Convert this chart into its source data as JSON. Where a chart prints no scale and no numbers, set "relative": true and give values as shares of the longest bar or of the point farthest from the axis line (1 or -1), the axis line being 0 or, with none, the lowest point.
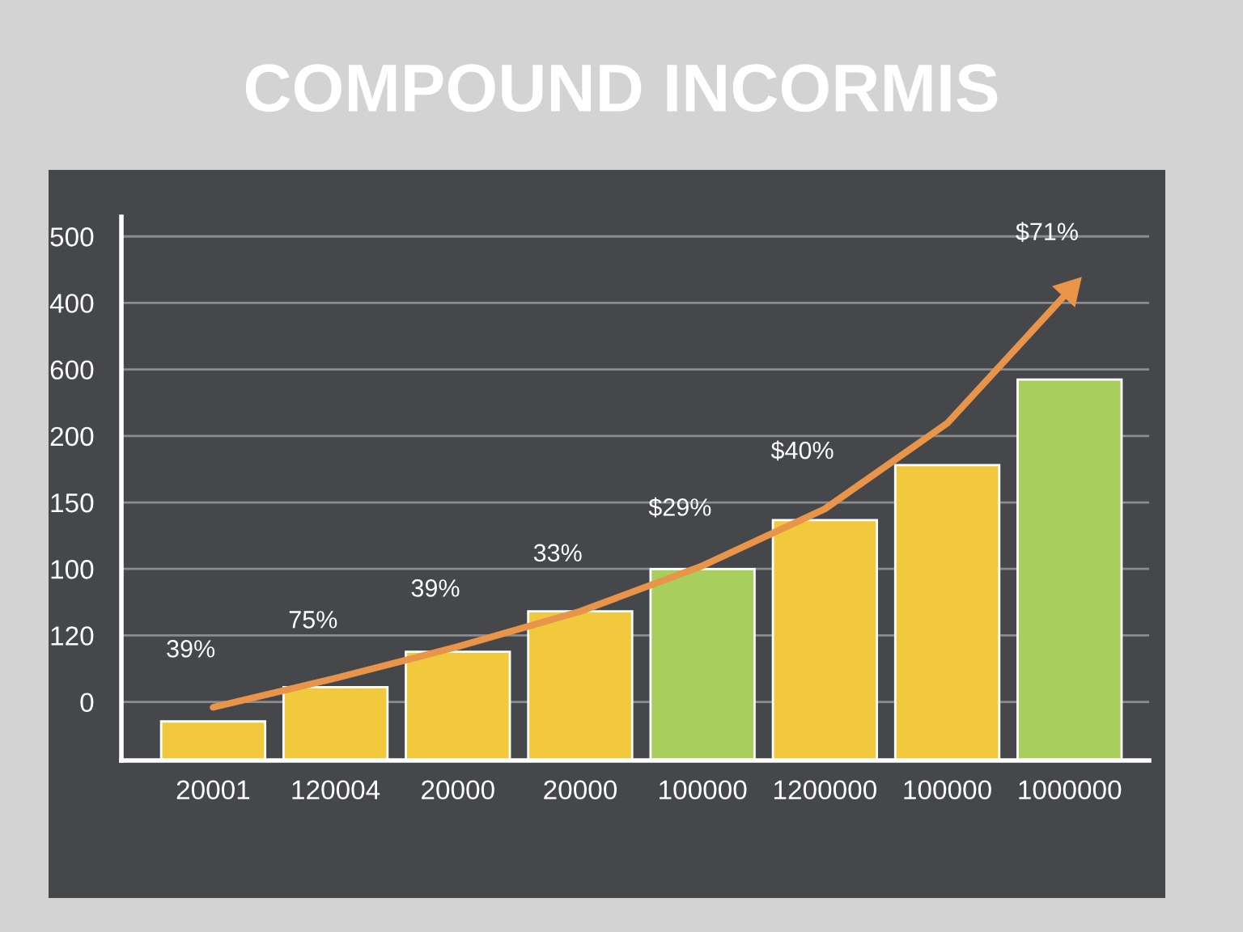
{
  "chart_data": {
    "type": "bar",
    "title": "COMPOUND INCORMIS",
    "categories": [
      "20001",
      "120004",
      "20000",
      "20000",
      "100000",
      "1200000",
      "100000",
      "1000000"
    ],
    "relative": true,
    "series": [
      {
        "colors": [
          "#f2c83c",
          "#f2c83c",
          "#f2c83c",
          "#f2c83c",
          "#a8cf5c",
          "#f2c83c",
          "#f2c83c",
          "#a8cf5c"
        ],
        "values": [
          0.083,
          0.156,
          0.231,
          0.317,
          0.407,
          0.511,
          0.628,
          0.81
        ]
      },
      {
        "type": "line",
        "color": "#e8954a",
        "values": [
          0.113,
          0.175,
          0.242,
          0.317,
          0.414,
          0.535,
          0.717,
          1
        ]
      }
    ],
    "annotations": [
      "0",
      "120",
      "100",
      "150",
      "200",
      "600",
      "400",
      "500",
      "39%",
      "75%",
      "39%",
      "33%",
      "$29%",
      "$40%",
      "$71%"
    ],
    "grid": "y"
  }
}
